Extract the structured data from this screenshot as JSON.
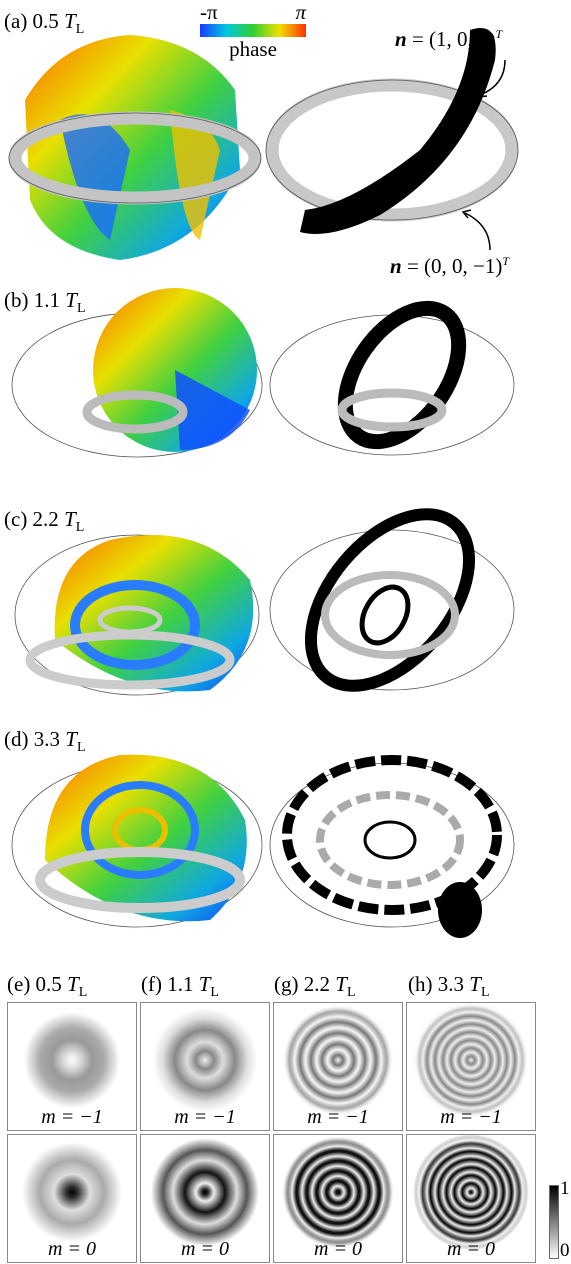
{
  "panels": [
    {
      "label": "(a) 0.5",
      "unit": "T",
      "sub": "L"
    },
    {
      "label": "(b) 1.1",
      "unit": "T",
      "sub": "L"
    },
    {
      "label": "(c) 2.2",
      "unit": "T",
      "sub": "L"
    },
    {
      "label": "(d) 3.3",
      "unit": "T",
      "sub": "L"
    }
  ],
  "phase_bar": {
    "min": "-π",
    "max": "π",
    "label": "phase"
  },
  "annotations": [
    {
      "vec": "n",
      "eq": "= (1, 0, 0)",
      "sup": "T"
    },
    {
      "vec": "n",
      "eq": "= (0, 0, −1)",
      "sup": "T"
    }
  ],
  "density": {
    "columns": [
      {
        "label": "(e) 0.5",
        "unit": "T",
        "sub": "L"
      },
      {
        "label": "(f) 1.1",
        "unit": "T",
        "sub": "L"
      },
      {
        "label": "(g) 2.2",
        "unit": "T",
        "sub": "L"
      },
      {
        "label": "(h) 3.3",
        "unit": "T",
        "sub": "L"
      }
    ],
    "rows": [
      "m = −1",
      "m = 0"
    ],
    "scale": {
      "max": "1",
      "min": "0"
    }
  }
}
